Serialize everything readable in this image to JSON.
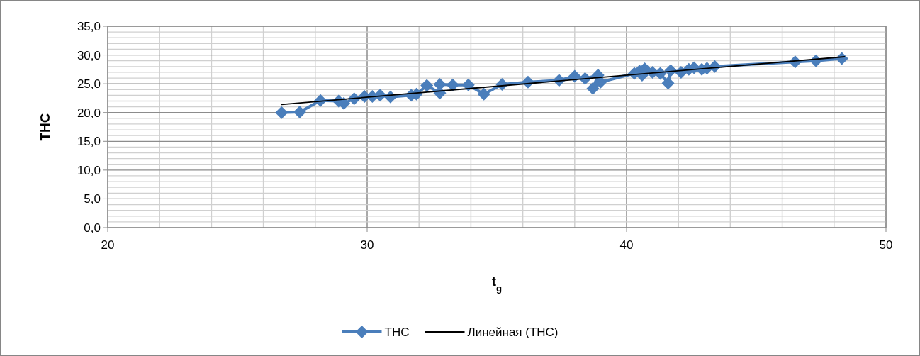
{
  "chart_data": {
    "type": "line",
    "xlabel": "t$_{g}$",
    "ylabel": "ТНС",
    "xlim": [
      20,
      50
    ],
    "xticks": [
      20,
      {
        "value": 22,
        "label": null
      },
      {
        "value": 24,
        "label": null
      },
      {
        "value": 26,
        "label": null
      },
      {
        "value": 28,
        "label": null
      },
      30,
      {
        "value": 32,
        "label": null
      },
      {
        "value": 34,
        "label": null
      },
      {
        "value": 36,
        "label": null
      },
      {
        "value": 38,
        "label": null
      },
      40,
      {
        "value": 42,
        "label": null
      },
      {
        "value": 44,
        "label": null
      },
      {
        "value": 46,
        "label": null
      },
      {
        "value": 48,
        "label": null
      },
      50
    ],
    "ylim": [
      0,
      35
    ],
    "yticks": [
      {
        "value": 0,
        "label": "0,0"
      },
      {
        "value": 1,
        "label": null
      },
      {
        "value": 2,
        "label": null
      },
      {
        "value": 3,
        "label": null
      },
      {
        "value": 4,
        "label": null
      },
      {
        "value": 5,
        "label": "5,0"
      },
      {
        "value": 6,
        "label": null
      },
      {
        "value": 7,
        "label": null
      },
      {
        "value": 8,
        "label": null
      },
      {
        "value": 9,
        "label": null
      },
      {
        "value": 10,
        "label": "10,0"
      },
      {
        "value": 11,
        "label": null
      },
      {
        "value": 12,
        "label": null
      },
      {
        "value": 13,
        "label": null
      },
      {
        "value": 14,
        "label": null
      },
      {
        "value": 15,
        "label": "15,0"
      },
      {
        "value": 16,
        "label": null
      },
      {
        "value": 17,
        "label": null
      },
      {
        "value": 18,
        "label": null
      },
      {
        "value": 19,
        "label": null
      },
      {
        "value": 20,
        "label": "20,0"
      },
      {
        "value": 21,
        "label": null
      },
      {
        "value": 22,
        "label": null
      },
      {
        "value": 23,
        "label": null
      },
      {
        "value": 24,
        "label": null
      },
      {
        "value": 25,
        "label": "25,0"
      },
      {
        "value": 26,
        "label": null
      },
      {
        "value": 27,
        "label": null
      },
      {
        "value": 28,
        "label": null
      },
      {
        "value": 29,
        "label": null
      },
      {
        "value": 30,
        "label": "30,0"
      },
      {
        "value": 31,
        "label": null
      },
      {
        "value": 32,
        "label": null
      },
      {
        "value": 33,
        "label": null
      },
      {
        "value": 34,
        "label": null
      },
      {
        "value": 35,
        "label": "35,0"
      }
    ],
    "grid": true,
    "legend": "bottom",
    "series": [
      {
        "name": "ТНС",
        "marker": "diamond",
        "color": "#4a7ebb",
        "x": [
          26.7,
          27.4,
          28.2,
          28.9,
          29.1,
          29.5,
          29.9,
          30.2,
          30.5,
          30.9,
          31.7,
          31.9,
          32.3,
          32.8,
          32.8,
          33.3,
          33.9,
          34.5,
          35.2,
          36.2,
          37.4,
          38.0,
          38.4,
          38.9,
          38.7,
          39.0,
          40.3,
          40.5,
          40.6,
          40.7,
          41.0,
          41.3,
          41.6,
          41.7,
          42.1,
          42.4,
          42.6,
          42.9,
          43.1,
          43.4,
          46.5,
          47.3,
          48.3
        ],
        "values": [
          20.0,
          20.1,
          22.1,
          22.0,
          21.6,
          22.4,
          22.8,
          22.8,
          23.0,
          22.7,
          23.0,
          23.2,
          24.7,
          23.4,
          24.9,
          24.8,
          24.8,
          23.2,
          24.9,
          25.3,
          25.6,
          26.3,
          25.9,
          26.5,
          24.2,
          25.3,
          26.8,
          27.2,
          26.5,
          27.6,
          27.0,
          26.8,
          25.1,
          27.3,
          27.0,
          27.5,
          27.8,
          27.5,
          27.7,
          28.0,
          28.8,
          29.0,
          29.4
        ]
      },
      {
        "name": "Линейная (ТНС)",
        "marker": "none",
        "color": "#000000",
        "x": [
          26.7,
          48.4
        ],
        "values": [
          21.4,
          29.7
        ]
      }
    ]
  }
}
